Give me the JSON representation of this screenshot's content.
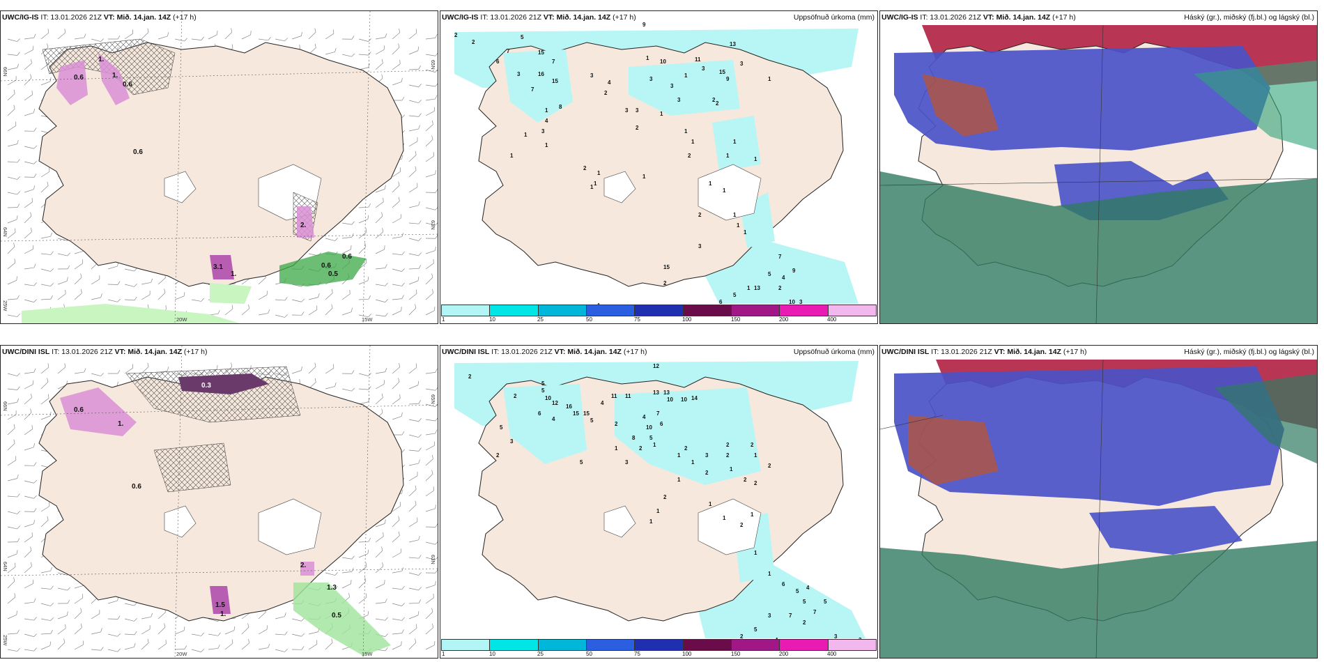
{
  "panels": {
    "top": {
      "wind": {
        "model": "UWC/IG-IS",
        "it": "IT: 13.01.2026 21Z",
        "vt": "VT: Mið. 14.jan. 14Z",
        "lead": "(+17 h)",
        "labels": [
          "0.6",
          "1.",
          "1.",
          "0.6",
          "0.6",
          "3.1",
          "1.",
          "2.",
          "0.6",
          "0.6",
          "0.5"
        ],
        "lat_labels": [
          "66N",
          "64N",
          "65N",
          "63N"
        ],
        "lon_labels": [
          "25W",
          "20W",
          "15W"
        ]
      },
      "precip": {
        "model": "UWC/IG-IS",
        "it": "IT: 13.01.2026 21Z",
        "vt": "VT: Mið. 14.jan. 14Z",
        "lead": "(+17 h)",
        "title": "Uppsöfnuð úrkoma (mm)",
        "values": [
          "2",
          "2",
          "9",
          "5",
          "7",
          "15",
          "6",
          "7",
          "16",
          "15",
          "7",
          "10",
          "11",
          "13",
          "15",
          "9",
          "3",
          "3",
          "3",
          "4",
          "2",
          "8",
          "3",
          "3",
          "2",
          "4",
          "3",
          "3",
          "3",
          "3",
          "1",
          "1",
          "3",
          "1",
          "2",
          "1",
          "2",
          "1",
          "1",
          "1",
          "2",
          "1",
          "1",
          "1",
          "1",
          "1",
          "1",
          "1",
          "2",
          "1",
          "1",
          "1",
          "1",
          "1",
          "1",
          "1",
          "1",
          "2",
          "3",
          "7",
          "5",
          "4",
          "9",
          "13",
          "6",
          "5",
          "10",
          "3",
          "2",
          "1",
          "15",
          "2",
          "1"
        ]
      },
      "clouds": {
        "model": "UWC/IG-IS",
        "it": "IT: 13.01.2026 21Z",
        "vt": "VT: Mið. 14.jan. 14Z",
        "lead": "(+17 h)",
        "title": "Háský (gr.), miðský (fj.bl.) og lágský (bl.)"
      }
    },
    "bottom": {
      "wind": {
        "model": "UWC/DINI ISL",
        "it": "IT: 13.01.2026 21Z",
        "vt": "VT: Mið. 14.jan. 14Z",
        "lead": "(+17 h)",
        "labels": [
          "0.3",
          "0.6",
          "1.",
          "0.6",
          "2.",
          "1.5",
          "1.",
          "1.3",
          "0.5"
        ],
        "lat_labels": [
          "66N",
          "64N",
          "65N",
          "63N"
        ],
        "lon_labels": [
          "25W",
          "20W",
          "15W"
        ]
      },
      "precip": {
        "model": "UWC/DINI ISL",
        "it": "IT: 13.01.2026 21Z",
        "vt": "VT: Mið. 14.jan. 14Z",
        "lead": "(+17 h)",
        "title": "Uppsöfnuð úrkoma (mm)",
        "values": [
          "12",
          "2",
          "5",
          "5",
          "10",
          "2",
          "12",
          "6",
          "4",
          "16",
          "15",
          "15",
          "4",
          "11",
          "11",
          "13",
          "13",
          "10",
          "14",
          "10",
          "7",
          "6",
          "4",
          "10",
          "5",
          "5",
          "2",
          "8",
          "5",
          "3",
          "2",
          "5",
          "1",
          "3",
          "2",
          "1",
          "2",
          "1",
          "1",
          "3",
          "2",
          "2",
          "2",
          "2",
          "1",
          "1",
          "2",
          "2",
          "2",
          "1",
          "2",
          "1",
          "1",
          "1",
          "1",
          "2",
          "1",
          "1",
          "1",
          "6",
          "5",
          "4",
          "5",
          "7",
          "3",
          "5",
          "2",
          "4",
          "2",
          "7",
          "5",
          "3",
          "3"
        ]
      },
      "clouds": {
        "model": "UWC/DINI ISL",
        "it": "IT: 13.01.2026 21Z",
        "vt": "VT: Mið. 14.jan. 14Z",
        "lead": "(+17 h)",
        "title": "Háský (gr.), miðský (fj.bl.) og lágský (bl.)"
      }
    }
  },
  "colorbar": {
    "labels": [
      "1",
      "10",
      "25",
      "50",
      "75",
      "100",
      "150",
      "200",
      "400"
    ],
    "colors": [
      "#b3f4f4",
      "#00e6e6",
      "#00b7d9",
      "#2a5fe0",
      "#1f2fb0",
      "#6a0b4a",
      "#a01886",
      "#e81cb2",
      "#f2b8ee"
    ]
  },
  "colors": {
    "land": "#f6e8dc",
    "precip_light": "#b8f6f6",
    "snow_pink": "#d98fd6",
    "rain_green": "#3aa845",
    "high_cloud": "#b02040",
    "mid_cloud": "#4a52c8",
    "low_cloud": "#2f7a62"
  }
}
